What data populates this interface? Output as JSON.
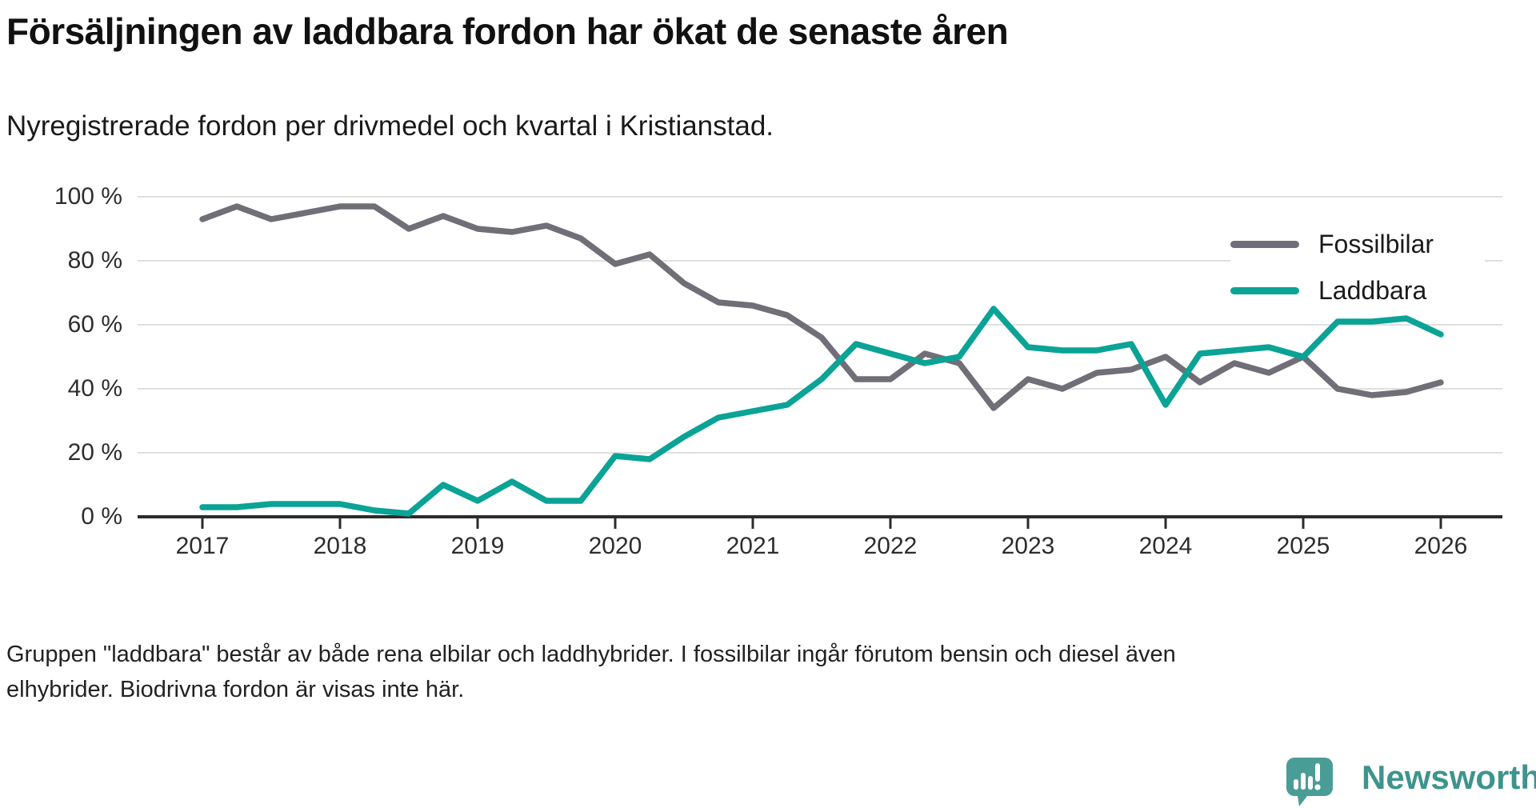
{
  "title": "Försäljningen av laddbara fordon har ökat de senaste åren",
  "subtitle": "Nyregistrerade fordon per drivmedel och kvartal i Kristianstad.",
  "legend": {
    "items": [
      {
        "label": "Fossilbilar",
        "color": "#706e77"
      },
      {
        "label": "Laddbara",
        "color": "#0aa396"
      }
    ]
  },
  "footer": {
    "line1": "Gruppen \"laddbara\" består av både rena elbilar och laddhybrider. I fossilbilar ingår förutom bensin och diesel även",
    "line2": "elhybrider. Biodrivna fordon är visas inte här."
  },
  "logo": {
    "text": "Newsworthy",
    "text_color": "#3e948d",
    "bubble_color": "#4a9d97"
  },
  "chart_data": {
    "type": "line",
    "title": "Försäljningen av laddbara fordon har ökat de senaste åren",
    "subtitle": "Nyregistrerade fordon per drivmedel och kvartal i Kristianstad.",
    "x_unit": "quarter",
    "x_start": "2017 Q1",
    "x_end": "2026 Q1",
    "x_tick_labels": [
      "2017",
      "2018",
      "2019",
      "2020",
      "2021",
      "2022",
      "2023",
      "2024",
      "2025",
      "2026"
    ],
    "y_tick_labels": [
      "0 %",
      "20 %",
      "40 %",
      "60 %",
      "80 %",
      "100 %"
    ],
    "ylim": [
      0,
      100
    ],
    "grid": true,
    "legend_position": "top-right",
    "axis_color": "#2b2b2b",
    "gridline_color": "#e0e0e0",
    "series": [
      {
        "name": "Fossilbilar",
        "color": "#706e77",
        "values": [
          93,
          97,
          93,
          95,
          97,
          97,
          90,
          94,
          90,
          89,
          91,
          87,
          79,
          82,
          73,
          67,
          66,
          63,
          56,
          43,
          43,
          51,
          48,
          34,
          43,
          40,
          45,
          46,
          50,
          42,
          48,
          45,
          50,
          40,
          38,
          39,
          42
        ]
      },
      {
        "name": "Laddbara",
        "color": "#0aa396",
        "values": [
          3,
          3,
          4,
          4,
          4,
          2,
          1,
          10,
          5,
          11,
          5,
          5,
          19,
          18,
          25,
          31,
          33,
          35,
          43,
          54,
          51,
          48,
          50,
          65,
          53,
          52,
          52,
          54,
          35,
          51,
          52,
          53,
          50,
          61,
          61,
          62,
          57
        ]
      }
    ]
  }
}
